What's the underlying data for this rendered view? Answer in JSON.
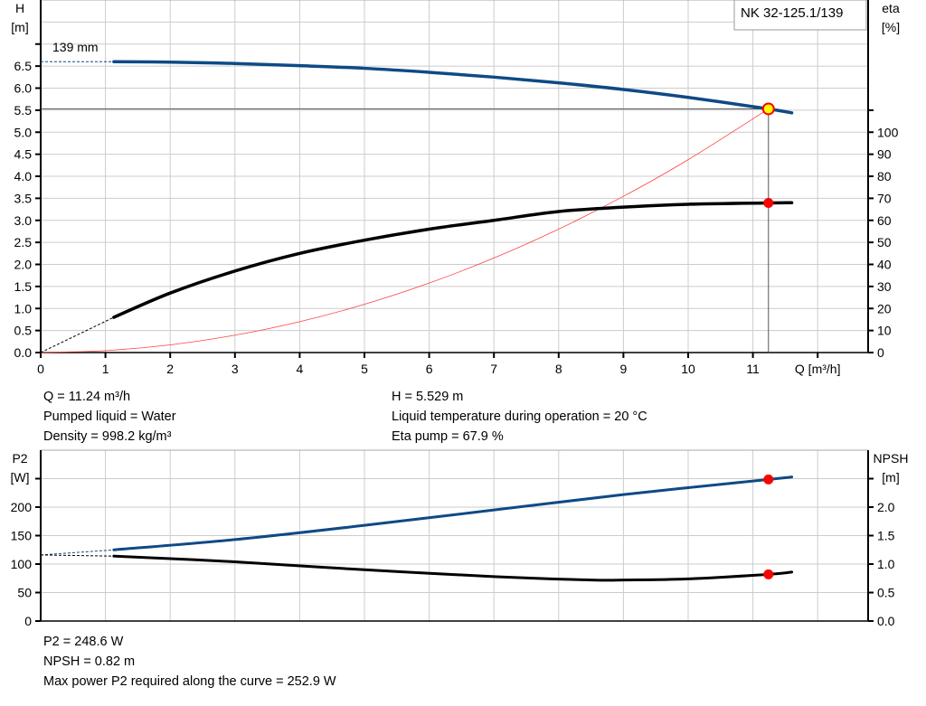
{
  "title_box": "NK 32-125.1/139",
  "impeller_label": "139 mm",
  "colors": {
    "head": "#0e4a85",
    "eta": "#000000",
    "system": "#ff4040",
    "duty_point": "#ff0000",
    "duty_point_fill_top": "#ffff00",
    "grid": "#cccccc"
  },
  "info_top": {
    "left": [
      "Q = 11.24 m³/h",
      "Pumped liquid = Water",
      "Density = 998.2 kg/m³"
    ],
    "right": [
      "H = 5.529 m",
      "Liquid temperature during operation = 20 °C",
      "Eta pump = 67.9 %"
    ]
  },
  "info_bottom": [
    "P2 = 248.6 W",
    "NPSH = 0.82 m",
    "Max power P2 required along the curve = 252.9 W"
  ],
  "chart_data": [
    {
      "type": "line",
      "xlabel": "Q [m³/h]",
      "ylabel_left": [
        "H",
        "[m]"
      ],
      "ylabel_right": [
        "eta",
        "[%]"
      ],
      "xlim": [
        0,
        12.8
      ],
      "ylim_left": [
        0,
        8.0
      ],
      "ylim_right": [
        0,
        160
      ],
      "x_ticks": [
        "0",
        "1",
        "2",
        "3",
        "4",
        "5",
        "6",
        "7",
        "8",
        "9",
        "10",
        "11"
      ],
      "y_ticks_left": [
        "0.0",
        "0.5",
        "1.0",
        "1.5",
        "2.0",
        "2.5",
        "3.0",
        "3.5",
        "4.0",
        "4.5",
        "5.0",
        "5.5",
        "6.0",
        "6.5"
      ],
      "y_ticks_right": [
        "0",
        "10",
        "20",
        "30",
        "40",
        "50",
        "60",
        "70",
        "80",
        "90",
        "100"
      ],
      "grid": true,
      "series": [
        {
          "name": "H",
          "axis": "left",
          "x": [
            1.13,
            2,
            3,
            4,
            5,
            6,
            7,
            8,
            9,
            10,
            11.24,
            11.6
          ],
          "y": [
            6.6,
            6.59,
            6.56,
            6.51,
            6.45,
            6.36,
            6.25,
            6.12,
            5.97,
            5.79,
            5.529,
            5.44
          ],
          "extension_from": [
            0,
            6.6
          ]
        },
        {
          "name": "eta",
          "axis": "right",
          "x": [
            1.13,
            2,
            3,
            4,
            5,
            6,
            7,
            8,
            9,
            10,
            11.24,
            11.6
          ],
          "y": [
            16,
            27,
            37,
            45,
            51,
            56,
            60,
            64,
            66,
            67.3,
            67.9,
            68
          ],
          "extension_from": [
            0,
            0
          ]
        },
        {
          "name": "system curve",
          "axis": "left",
          "x": [
            0,
            1,
            2,
            3,
            4,
            5,
            6,
            7,
            8,
            9,
            10,
            11.24
          ],
          "y": [
            0,
            0.044,
            0.175,
            0.394,
            0.7,
            1.094,
            1.576,
            2.145,
            2.801,
            3.545,
            4.377,
            5.529
          ]
        }
      ],
      "duty_point": {
        "Q": 11.24,
        "H": 5.529,
        "eta": 67.9
      }
    },
    {
      "type": "line",
      "ylabel_left": [
        "P2",
        "[W]"
      ],
      "ylabel_right": [
        "NPSH",
        "[m]"
      ],
      "xlim": [
        0,
        12.8
      ],
      "ylim_left": [
        0,
        300
      ],
      "ylim_right": [
        0,
        3.0
      ],
      "y_ticks_left": [
        "0",
        "50",
        "100",
        "150",
        "200"
      ],
      "y_ticks_right": [
        "0.0",
        "0.5",
        "1.0",
        "1.5",
        "2.0"
      ],
      "grid": true,
      "series": [
        {
          "name": "P2",
          "axis": "left",
          "x": [
            1.13,
            3,
            5,
            7,
            9,
            11.24,
            11.6
          ],
          "y": [
            125,
            143,
            168,
            195,
            222,
            248.6,
            252.9
          ],
          "extension_from": [
            0,
            116
          ]
        },
        {
          "name": "NPSH",
          "axis": "right",
          "x": [
            1.13,
            3,
            5,
            7,
            8.5,
            9,
            10,
            11.24,
            11.6
          ],
          "y": [
            1.14,
            1.04,
            0.9,
            0.78,
            0.72,
            0.72,
            0.74,
            0.82,
            0.86
          ],
          "extension_from": [
            0,
            1.16
          ]
        }
      ],
      "duty_point": {
        "Q": 11.24,
        "P2": 248.6,
        "NPSH": 0.82
      }
    }
  ]
}
